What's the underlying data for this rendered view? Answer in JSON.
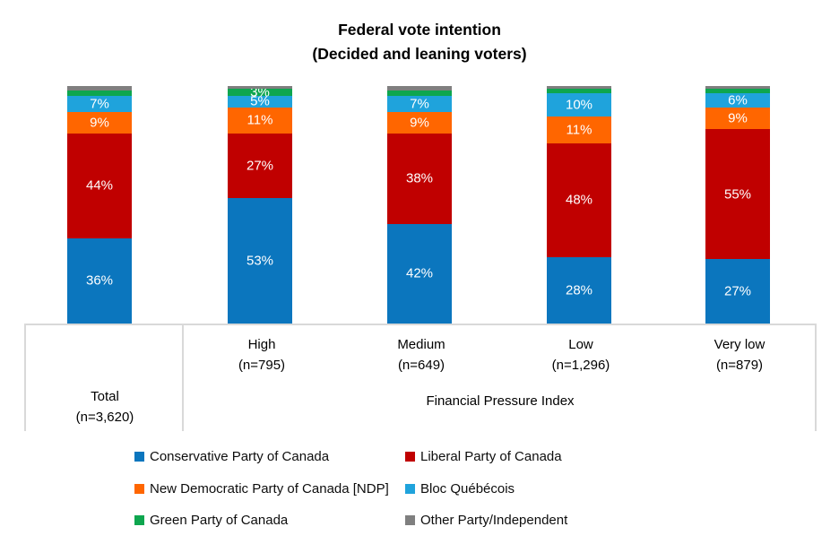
{
  "title": {
    "line1": "Federal vote intention",
    "line2": "(Decided and leaning voters)"
  },
  "chart_data": {
    "type": "bar",
    "stacked": true,
    "value_unit": "%",
    "title": "Federal vote intention (Decided and leaning voters)",
    "ylim": [
      0,
      100
    ],
    "grid": false,
    "legend_position": "bottom",
    "group_label": "Financial Pressure Index",
    "categories": [
      {
        "label": "Total",
        "n_label": "(n=3,620)",
        "group": "Total"
      },
      {
        "label": "High",
        "n_label": "(n=795)",
        "group": "Financial Pressure Index"
      },
      {
        "label": "Medium",
        "n_label": "(n=649)",
        "group": "Financial Pressure Index"
      },
      {
        "label": "Low",
        "n_label": "(n=1,296)",
        "group": "Financial Pressure Index"
      },
      {
        "label": "Very low",
        "n_label": "(n=879)",
        "group": "Financial Pressure Index"
      }
    ],
    "series": [
      {
        "name": "Conservative Party of Canada",
        "color": "#0B76BE",
        "values": [
          36,
          53,
          42,
          28,
          27
        ],
        "labels": [
          "36%",
          "53%",
          "42%",
          "28%",
          "27%"
        ]
      },
      {
        "name": "Liberal Party of Canada",
        "color": "#C00000",
        "values": [
          44,
          27,
          38,
          48,
          55
        ],
        "labels": [
          "44%",
          "27%",
          "38%",
          "48%",
          "55%"
        ]
      },
      {
        "name": "New Democratic Party of Canada [NDP]",
        "color": "#FF6600",
        "values": [
          9,
          11,
          9,
          11,
          9
        ],
        "labels": [
          "9%",
          "11%",
          "9%",
          "11%",
          "9%"
        ]
      },
      {
        "name": "Bloc Québécois",
        "color": "#1FA3DC",
        "values": [
          7,
          5,
          7,
          10,
          6
        ],
        "labels": [
          "7%",
          "5%",
          "7%",
          "10%",
          "6%"
        ]
      },
      {
        "name": "Green Party of Canada",
        "color": "#0EA64F",
        "values": [
          2,
          3,
          2,
          2,
          2
        ],
        "labels": [
          "",
          "3%",
          "",
          "",
          ""
        ]
      },
      {
        "name": "Other Party/Independent",
        "color": "#7F7F7F",
        "values": [
          2,
          1,
          2,
          1,
          1
        ],
        "labels": [
          "",
          "",
          "",
          "",
          ""
        ]
      }
    ]
  },
  "colors": {
    "axis_line": "#D9D9D9",
    "bar_label_text": "#FFFFFF",
    "text": "#000000"
  }
}
